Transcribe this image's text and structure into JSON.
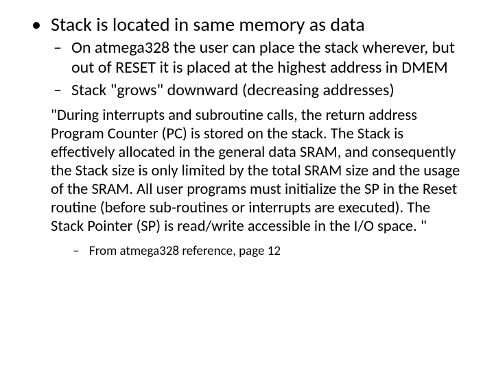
{
  "colors": {
    "background": "#ffffff",
    "text": "#000000"
  },
  "typography": {
    "family": "Calibri, 'Segoe UI', Arial, sans-serif",
    "level1_fontsize": 28,
    "level2_fontsize": 24,
    "quote_fontsize": 22.5,
    "level3_fontsize": 19,
    "line_height": 1.2
  },
  "bullets": {
    "level1": "Stack is located in same memory as data",
    "level2_a": "On atmega328 the user can place the stack wherever, but out of RESET it is placed at the highest address in DMEM",
    "level2_b": " Stack \"grows\" downward (decreasing addresses)"
  },
  "quote": "\"During interrupts and subroutine calls, the return address Program Counter (PC) is stored on the stack. The Stack is effectively allocated in the general data SRAM, and consequently the Stack size is only limited by the total SRAM size and the usage of the SRAM. All user programs must initialize the SP in the Reset routine (before sub-routines or interrupts are executed). The Stack Pointer (SP) is read/write accessible in the I/O space. \"",
  "citation": "From atmega328 reference, page 12"
}
